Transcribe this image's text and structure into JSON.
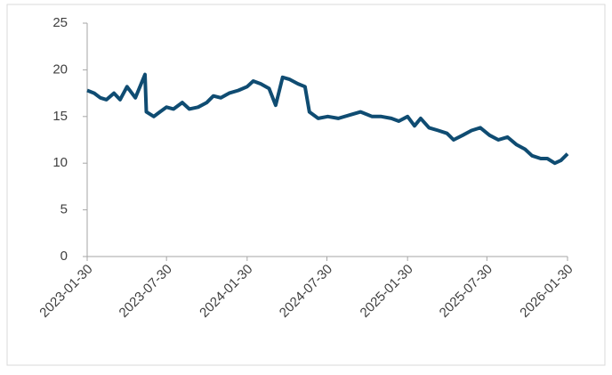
{
  "chart_data": {
    "type": "line",
    "x": [
      "2023-01-30",
      "2023-02-15",
      "2023-03-01",
      "2023-03-15",
      "2023-04-01",
      "2023-04-15",
      "2023-05-01",
      "2023-05-20",
      "2023-06-11",
      "2023-06-14",
      "2023-07-01",
      "2023-07-15",
      "2023-07-30",
      "2023-08-15",
      "2023-09-04",
      "2023-09-20",
      "2023-10-10",
      "2023-10-30",
      "2023-11-14",
      "2023-12-01",
      "2023-12-20",
      "2024-01-10",
      "2024-01-30",
      "2024-02-13",
      "2024-03-01",
      "2024-03-20",
      "2024-04-04",
      "2024-04-20",
      "2024-05-05",
      "2024-05-25",
      "2024-06-10",
      "2024-06-20",
      "2024-07-10",
      "2024-08-01",
      "2024-08-25",
      "2024-09-23",
      "2024-10-15",
      "2024-11-10",
      "2024-12-01",
      "2024-12-24",
      "2025-01-10",
      "2025-01-30",
      "2025-02-15",
      "2025-03-01",
      "2025-03-20",
      "2025-04-10",
      "2025-04-30",
      "2025-05-15",
      "2025-06-05",
      "2025-06-25",
      "2025-07-15",
      "2025-08-05",
      "2025-08-25",
      "2025-09-15",
      "2025-10-05",
      "2025-10-25",
      "2025-11-10",
      "2025-11-30",
      "2025-12-15",
      "2026-01-01",
      "2026-01-15",
      "2026-01-30"
    ],
    "series": [
      {
        "color": "#0f4c72",
        "values": [
          17.8,
          17.5,
          17.0,
          16.8,
          17.5,
          16.8,
          18.2,
          17.0,
          19.5,
          15.5,
          15.0,
          15.5,
          16.0,
          15.8,
          16.5,
          15.8,
          16.0,
          16.5,
          17.2,
          17.0,
          17.5,
          17.8,
          18.2,
          18.8,
          18.5,
          18.0,
          16.2,
          19.2,
          19.0,
          18.5,
          18.2,
          15.5,
          14.8,
          15.0,
          14.8,
          15.2,
          15.5,
          15.0,
          15.0,
          14.8,
          14.5,
          15.0,
          14.0,
          14.8,
          13.8,
          13.5,
          13.2,
          12.5,
          13.0,
          13.5,
          13.8,
          13.0,
          12.5,
          12.8,
          12.0,
          11.5,
          10.8,
          10.5,
          10.5,
          10.0,
          10.3,
          11.0
        ]
      }
    ],
    "xlim": [
      "2023-01-30",
      "2026-01-30"
    ],
    "xticks": [
      "2023-01-30",
      "2023-07-30",
      "2024-01-30",
      "2024-07-30",
      "2025-01-30",
      "2025-07-30",
      "2026-01-30"
    ],
    "ylim": [
      0,
      25
    ],
    "yticks": [
      0,
      5,
      10,
      15,
      20,
      25
    ],
    "grid": false
  }
}
